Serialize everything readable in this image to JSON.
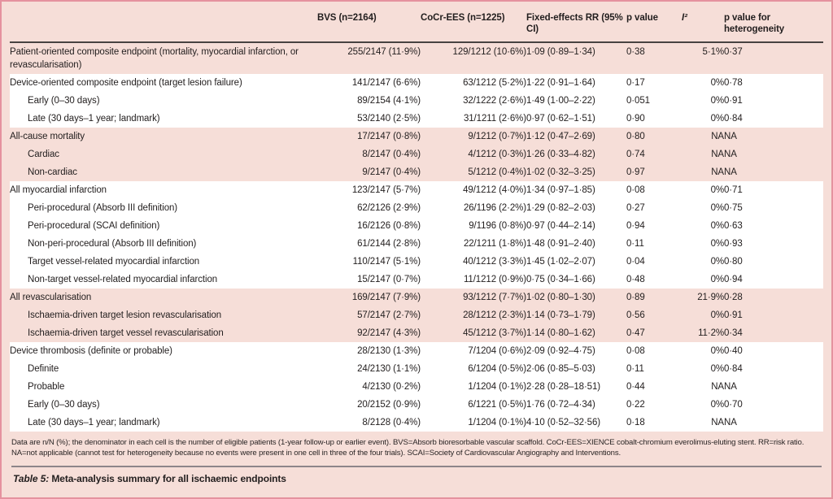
{
  "colors": {
    "panel_background": "#f6ded8",
    "panel_border": "#e5929f",
    "white_row": "#ffffff",
    "header_rule": "#474241",
    "caption_rule": "#8d8589",
    "text": "#221e1e"
  },
  "table": {
    "columns": [
      {
        "key": "endpoint",
        "label": ""
      },
      {
        "key": "bvs",
        "label": "BVS (n=2164)"
      },
      {
        "key": "cocr_ees",
        "label": "CoCr-EES (n=1225)"
      },
      {
        "key": "rr",
        "label": "Fixed-effects RR (95% CI)"
      },
      {
        "key": "p_value",
        "label": "p value"
      },
      {
        "key": "i2",
        "label": "I²"
      },
      {
        "key": "p_het",
        "label": "p value for heterogeneity"
      }
    ],
    "rows": [
      {
        "label": "Patient-oriented composite endpoint (mortality, myocardial infarction, or revascularisation)",
        "indent": 0,
        "shade": "rose",
        "values": [
          "255/2147 (11·9%)",
          "129/1212 (10·6%)",
          "1·09 (0·89–1·34)",
          "0·38",
          "5·1%",
          "0·37"
        ]
      },
      {
        "label": "Device-oriented composite endpoint (target lesion failure)",
        "indent": 0,
        "shade": "white",
        "values": [
          "141/2147 (6·6%)",
          "63/1212 (5·2%)",
          "1·22 (0·91–1·64)",
          "0·17",
          "0%",
          "0·78"
        ]
      },
      {
        "label": "Early (0–30 days)",
        "indent": 1,
        "shade": "white",
        "values": [
          "89/2154 (4·1%)",
          "32/1222 (2·6%)",
          "1·49 (1·00–2·22)",
          "0·051",
          "0%",
          "0·91"
        ]
      },
      {
        "label": "Late (30 days–1 year; landmark)",
        "indent": 1,
        "shade": "white",
        "values": [
          "53/2140 (2·5%)",
          "31/1211 (2·6%)",
          "0·97 (0·62–1·51)",
          "0·90",
          "0%",
          "0·84"
        ]
      },
      {
        "label": "All-cause mortality",
        "indent": 0,
        "shade": "rose",
        "values": [
          "17/2147 (0·8%)",
          "9/1212 (0·7%)",
          "1·12 (0·47–2·69)",
          "0·80",
          "NA",
          "NA"
        ]
      },
      {
        "label": "Cardiac",
        "indent": 1,
        "shade": "rose",
        "values": [
          "8/2147 (0·4%)",
          "4/1212 (0·3%)",
          "1·26 (0·33–4·82)",
          "0·74",
          "NA",
          "NA"
        ]
      },
      {
        "label": "Non-cardiac",
        "indent": 1,
        "shade": "rose",
        "values": [
          "9/2147 (0·4%)",
          "5/1212 (0·4%)",
          "1·02 (0·32–3·25)",
          "0·97",
          "NA",
          "NA"
        ]
      },
      {
        "label": "All myocardial infarction",
        "indent": 0,
        "shade": "white",
        "values": [
          "123/2147 (5·7%)",
          "49/1212 (4·0%)",
          "1·34 (0·97–1·85)",
          "0·08",
          "0%",
          "0·71"
        ]
      },
      {
        "label": "Peri-procedural (Absorb III definition)",
        "indent": 1,
        "shade": "white",
        "values": [
          "62/2126 (2·9%)",
          "26/1196 (2·2%)",
          "1·29 (0·82–2·03)",
          "0·27",
          "0%",
          "0·75"
        ]
      },
      {
        "label": "Peri-procedural (SCAI definition)",
        "indent": 1,
        "shade": "white",
        "values": [
          "16/2126 (0·8%)",
          "9/1196 (0·8%)",
          "0·97 (0·44–2·14)",
          "0·94",
          "0%",
          "0·63"
        ]
      },
      {
        "label": "Non-peri-procedural (Absorb III definition)",
        "indent": 1,
        "shade": "white",
        "values": [
          "61/2144 (2·8%)",
          "22/1211 (1·8%)",
          "1·48 (0·91–2·40)",
          "0·11",
          "0%",
          "0·93"
        ]
      },
      {
        "label": "Target vessel-related myocardial infarction",
        "indent": 1,
        "shade": "white",
        "values": [
          "110/2147 (5·1%)",
          "40/1212 (3·3%)",
          "1·45 (1·02–2·07)",
          "0·04",
          "0%",
          "0·80"
        ]
      },
      {
        "label": "Non-target vessel-related myocardial infarction",
        "indent": 1,
        "shade": "white",
        "values": [
          "15/2147 (0·7%)",
          "11/1212 (0·9%)",
          "0·75 (0·34–1·66)",
          "0·48",
          "0%",
          "0·94"
        ]
      },
      {
        "label": "All revascularisation",
        "indent": 0,
        "shade": "rose",
        "values": [
          "169/2147 (7·9%)",
          "93/1212 (7·7%)",
          "1·02 (0·80–1·30)",
          "0·89",
          "21·9%",
          "0·28"
        ]
      },
      {
        "label": "Ischaemia-driven target lesion revascularisation",
        "indent": 1,
        "shade": "rose",
        "values": [
          "57/2147 (2·7%)",
          "28/1212 (2·3%)",
          "1·14 (0·73–1·79)",
          "0·56",
          "0%",
          "0·91"
        ]
      },
      {
        "label": "Ischaemia-driven target vessel revascularisation",
        "indent": 1,
        "shade": "rose",
        "values": [
          "92/2147 (4·3%)",
          "45/1212 (3·7%)",
          "1·14 (0·80–1·62)",
          "0·47",
          "11·2%",
          "0·34"
        ]
      },
      {
        "label": "Device thrombosis (definite or probable)",
        "indent": 0,
        "shade": "white",
        "values": [
          "28/2130 (1·3%)",
          "7/1204 (0·6%)",
          "2·09 (0·92–4·75)",
          "0·08",
          "0%",
          "0·40"
        ]
      },
      {
        "label": "Definite",
        "indent": 1,
        "shade": "white",
        "values": [
          "24/2130 (1·1%)",
          "6/1204 (0·5%)",
          "2·06 (0·85–5·03)",
          "0·11",
          "0%",
          "0·84"
        ]
      },
      {
        "label": "Probable",
        "indent": 1,
        "shade": "white",
        "values": [
          "4/2130 (0·2%)",
          "1/1204 (0·1%)",
          "2·28 (0·28–18·51)",
          "0·44",
          "NA",
          "NA"
        ]
      },
      {
        "label": "Early (0–30 days)",
        "indent": 1,
        "shade": "white",
        "values": [
          "20/2152 (0·9%)",
          "6/1221 (0·5%)",
          "1·76 (0·72–4·34)",
          "0·22",
          "0%",
          "0·70"
        ]
      },
      {
        "label": "Late (30 days–1 year; landmark)",
        "indent": 1,
        "shade": "white",
        "values": [
          "8/2128 (0·4%)",
          "1/1204 (0·1%)",
          "4·10 (0·52–32·56)",
          "0·18",
          "NA",
          "NA"
        ]
      }
    ]
  },
  "footnote": "Data are n/N (%); the denominator in each cell is the number of eligible patients (1-year follow-up or earlier event). BVS=Absorb bioresorbable vascular scaffold. CoCr-EES=XIENCE cobalt-chromium everolimus-eluting stent. RR=risk ratio. NA=not applicable (cannot test for heterogeneity because no events were present in one cell in three of the four trials). SCAI=Society of Cardiovascular Angiography and Interventions.",
  "caption": {
    "prefix": "Table 5:",
    "text": "Meta-analysis summary for all ischaemic endpoints"
  }
}
